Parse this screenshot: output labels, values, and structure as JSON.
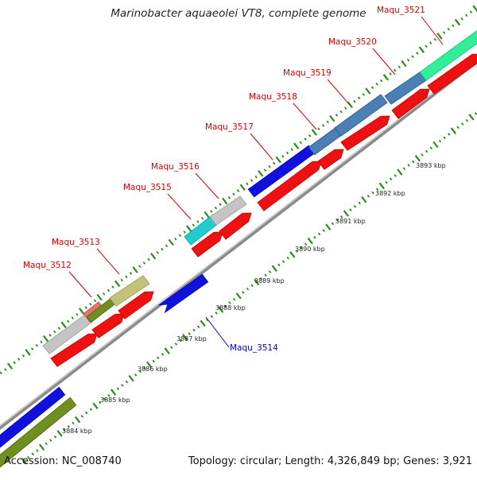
{
  "title": "Marinobacter aquaeolei VT8, complete genome",
  "footer": {
    "accession": "Accession: NC_008740",
    "topology": "Topology: circular; Length: 4,326,849 bp; Genes: 3,921"
  },
  "colors": {
    "background": "#ffffff",
    "backbone": "#8a8a8a",
    "tick": "#2a8a1a",
    "gene_label_red": "#d40000",
    "gene_label_blue": "#0000cc",
    "forward_cds": "#ee1111",
    "blue_gene": "#1111dd",
    "olive_gene": "#6f8f23",
    "grey_gene": "#c4c4c4",
    "cyan_gene": "#22cccc",
    "steelblue_gene": "#4a80b6",
    "khaki_gene": "#c3c27a",
    "pink_gene": "#e87070",
    "mint_gene": "#33ee99"
  },
  "ruler": {
    "labels": [
      "3884 kbp",
      "3885 kbp",
      "3886 kbp",
      "3887 kbp",
      "3888 kbp",
      "3889 kbp",
      "3890 kbp",
      "3891 kbp",
      "3892 kbp",
      "3893 kbp"
    ]
  },
  "genes": [
    {
      "name": "Maqu_3512",
      "color": "#d40000"
    },
    {
      "name": "Maqu_3513",
      "color": "#d40000"
    },
    {
      "name": "Maqu_3514",
      "color": "#0000cc"
    },
    {
      "name": "Maqu_3515",
      "color": "#d40000"
    },
    {
      "name": "Maqu_3516",
      "color": "#d40000"
    },
    {
      "name": "Maqu_3517",
      "color": "#d40000"
    },
    {
      "name": "Maqu_3518",
      "color": "#d40000"
    },
    {
      "name": "Maqu_3519",
      "color": "#d40000"
    },
    {
      "name": "Maqu_3520",
      "color": "#d40000"
    },
    {
      "name": "Maqu_3521",
      "color": "#d40000"
    }
  ]
}
